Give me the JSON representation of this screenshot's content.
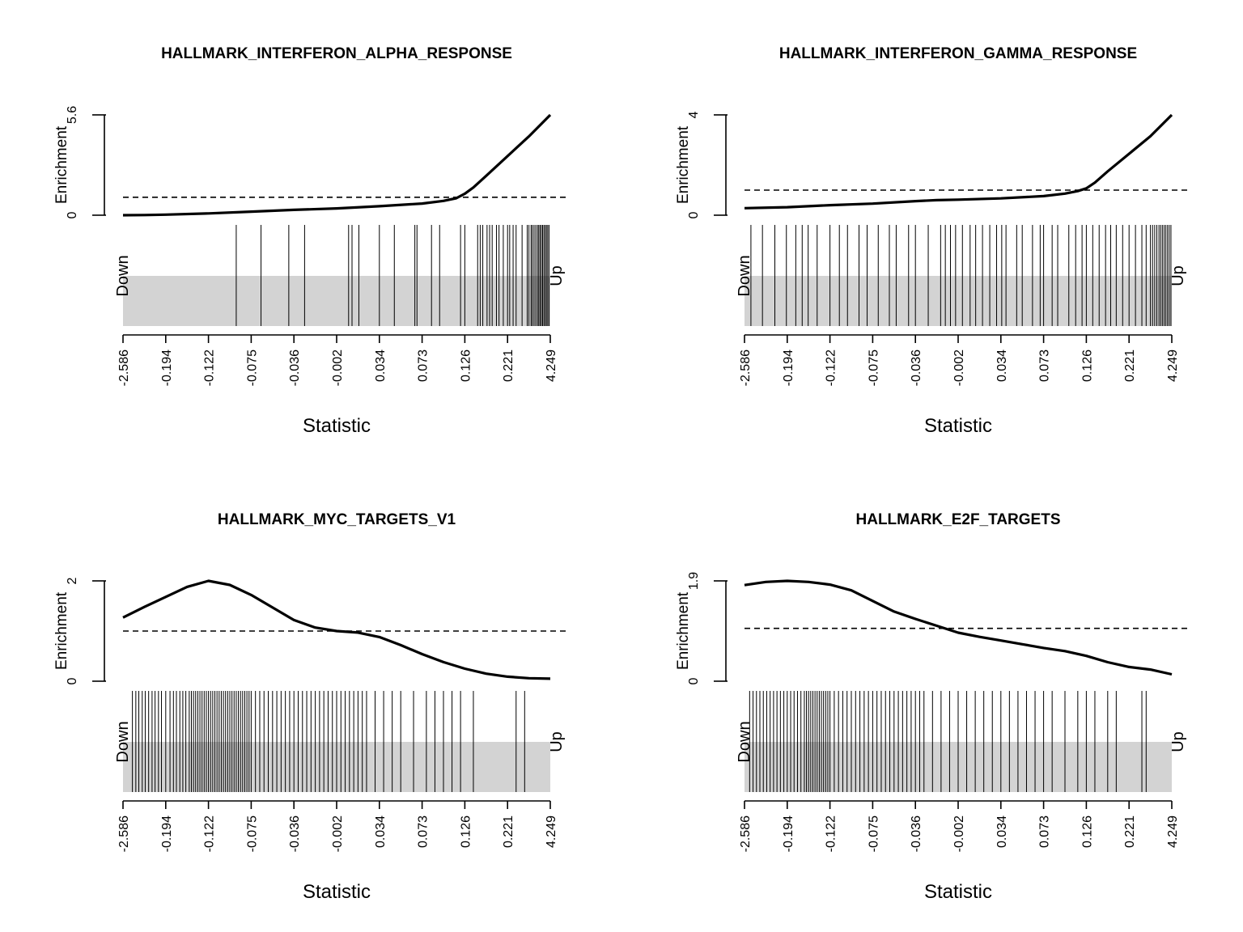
{
  "chart_data": [
    {
      "type": "line",
      "title": "HALLMARK_INTERFERON_ALPHA_RESPONSE",
      "xlabel": "Statistic",
      "ylabel": "Enrichment",
      "ytick_labels": [
        "0",
        "5.6"
      ],
      "ylim": [
        0,
        5.6
      ],
      "xtick_labels": [
        "-2.586",
        "-0.194",
        "-0.122",
        "-0.075",
        "-0.036",
        "-0.002",
        "0.034",
        "0.073",
        "0.126",
        "0.221",
        "4.249"
      ],
      "down_label": "Down",
      "up_label": "Up",
      "reference_line": 1.0,
      "x": [
        0,
        0.05,
        0.1,
        0.2,
        0.3,
        0.4,
        0.5,
        0.6,
        0.7,
        0.75,
        0.78,
        0.8,
        0.82,
        0.85,
        0.9,
        0.95,
        1.0
      ],
      "y": [
        0,
        0.01,
        0.03,
        0.1,
        0.2,
        0.3,
        0.38,
        0.5,
        0.65,
        0.8,
        0.95,
        1.2,
        1.55,
        2.2,
        3.3,
        4.4,
        5.6
      ],
      "barcode_positions": [
        0.265,
        0.323,
        0.388,
        0.425,
        0.528,
        0.536,
        0.552,
        0.6,
        0.635,
        0.683,
        0.688,
        0.722,
        0.741,
        0.79,
        0.8,
        0.83,
        0.836,
        0.842,
        0.852,
        0.858,
        0.864,
        0.874,
        0.88,
        0.89,
        0.9,
        0.905,
        0.913,
        0.92,
        0.934,
        0.946,
        0.95,
        0.955,
        0.958,
        0.962,
        0.966,
        0.97,
        0.973,
        0.976,
        0.979,
        0.982,
        0.985,
        0.988,
        0.991,
        0.994,
        0.997
      ]
    },
    {
      "type": "line",
      "title": "HALLMARK_INTERFERON_GAMMA_RESPONSE",
      "xlabel": "Statistic",
      "ylabel": "Enrichment",
      "ytick_labels": [
        "0",
        "4"
      ],
      "ylim": [
        0,
        4
      ],
      "xtick_labels": [
        "-2.586",
        "-0.194",
        "-0.122",
        "-0.075",
        "-0.036",
        "-0.002",
        "0.034",
        "0.073",
        "0.126",
        "0.221",
        "4.249"
      ],
      "down_label": "Down",
      "up_label": "Up",
      "reference_line": 1.0,
      "x": [
        0,
        0.1,
        0.2,
        0.3,
        0.4,
        0.45,
        0.5,
        0.6,
        0.7,
        0.75,
        0.78,
        0.8,
        0.82,
        0.85,
        0.9,
        0.95,
        1.0
      ],
      "y": [
        0.28,
        0.32,
        0.4,
        0.46,
        0.56,
        0.6,
        0.62,
        0.67,
        0.76,
        0.86,
        0.96,
        1.07,
        1.3,
        1.75,
        2.45,
        3.15,
        4.0
      ],
      "barcode_positions": [
        0.015,
        0.042,
        0.071,
        0.098,
        0.12,
        0.135,
        0.149,
        0.17,
        0.2,
        0.222,
        0.241,
        0.268,
        0.287,
        0.313,
        0.339,
        0.355,
        0.384,
        0.4,
        0.43,
        0.459,
        0.47,
        0.482,
        0.494,
        0.51,
        0.528,
        0.541,
        0.557,
        0.574,
        0.59,
        0.602,
        0.612,
        0.637,
        0.65,
        0.674,
        0.692,
        0.7,
        0.72,
        0.733,
        0.759,
        0.775,
        0.79,
        0.8,
        0.815,
        0.83,
        0.845,
        0.857,
        0.87,
        0.885,
        0.9,
        0.915,
        0.93,
        0.94,
        0.95,
        0.955,
        0.96,
        0.965,
        0.97,
        0.974,
        0.978,
        0.982,
        0.986,
        0.99,
        0.994,
        0.998
      ]
    },
    {
      "type": "line",
      "title": "HALLMARK_MYC_TARGETS_V1",
      "xlabel": "Statistic",
      "ylabel": "Enrichment",
      "ytick_labels": [
        "0",
        "2"
      ],
      "ylim": [
        0,
        2
      ],
      "xtick_labels": [
        "-2.586",
        "-0.194",
        "-0.122",
        "-0.075",
        "-0.036",
        "-0.002",
        "0.034",
        "0.073",
        "0.126",
        "0.221",
        "4.249"
      ],
      "down_label": "Down",
      "up_label": "Up",
      "reference_line": 1.0,
      "x": [
        0,
        0.05,
        0.1,
        0.15,
        0.2,
        0.25,
        0.3,
        0.35,
        0.4,
        0.45,
        0.5,
        0.55,
        0.6,
        0.65,
        0.7,
        0.75,
        0.8,
        0.85,
        0.9,
        0.95,
        1.0
      ],
      "y": [
        1.27,
        1.48,
        1.68,
        1.88,
        2.0,
        1.92,
        1.72,
        1.47,
        1.22,
        1.07,
        1.0,
        0.97,
        0.88,
        0.72,
        0.54,
        0.38,
        0.25,
        0.15,
        0.09,
        0.06,
        0.05
      ],
      "barcode_positions": [
        0.022,
        0.03,
        0.037,
        0.045,
        0.052,
        0.06,
        0.068,
        0.075,
        0.083,
        0.09,
        0.1,
        0.11,
        0.118,
        0.125,
        0.133,
        0.14,
        0.147,
        0.155,
        0.16,
        0.165,
        0.17,
        0.175,
        0.18,
        0.185,
        0.19,
        0.195,
        0.2,
        0.205,
        0.21,
        0.215,
        0.22,
        0.225,
        0.23,
        0.235,
        0.24,
        0.245,
        0.25,
        0.255,
        0.26,
        0.265,
        0.27,
        0.275,
        0.28,
        0.285,
        0.29,
        0.295,
        0.3,
        0.31,
        0.32,
        0.33,
        0.34,
        0.35,
        0.36,
        0.37,
        0.38,
        0.39,
        0.4,
        0.41,
        0.42,
        0.43,
        0.44,
        0.45,
        0.46,
        0.47,
        0.48,
        0.49,
        0.5,
        0.51,
        0.52,
        0.53,
        0.54,
        0.55,
        0.56,
        0.57,
        0.59,
        0.61,
        0.63,
        0.65,
        0.68,
        0.71,
        0.73,
        0.75,
        0.77,
        0.79,
        0.82,
        0.92,
        0.94
      ]
    },
    {
      "type": "line",
      "title": "HALLMARK_E2F_TARGETS",
      "xlabel": "Statistic",
      "ylabel": "Enrichment",
      "ytick_labels": [
        "0",
        "1.9"
      ],
      "ylim": [
        0,
        1.9
      ],
      "xtick_labels": [
        "-2.586",
        "-0.194",
        "-0.122",
        "-0.075",
        "-0.036",
        "-0.002",
        "0.034",
        "0.073",
        "0.126",
        "0.221",
        "4.249"
      ],
      "down_label": "Down",
      "up_label": "Up",
      "reference_line": 1.0,
      "x": [
        0,
        0.05,
        0.1,
        0.15,
        0.2,
        0.25,
        0.3,
        0.35,
        0.4,
        0.45,
        0.5,
        0.55,
        0.6,
        0.65,
        0.7,
        0.75,
        0.8,
        0.85,
        0.9,
        0.95,
        1.0
      ],
      "y": [
        1.82,
        1.88,
        1.9,
        1.88,
        1.83,
        1.72,
        1.52,
        1.32,
        1.18,
        1.05,
        0.92,
        0.84,
        0.77,
        0.7,
        0.63,
        0.57,
        0.48,
        0.36,
        0.27,
        0.22,
        0.13
      ],
      "barcode_positions": [
        0.012,
        0.02,
        0.028,
        0.036,
        0.044,
        0.052,
        0.06,
        0.068,
        0.076,
        0.084,
        0.092,
        0.1,
        0.108,
        0.116,
        0.124,
        0.132,
        0.14,
        0.145,
        0.15,
        0.155,
        0.16,
        0.165,
        0.17,
        0.175,
        0.18,
        0.185,
        0.19,
        0.195,
        0.2,
        0.21,
        0.22,
        0.23,
        0.24,
        0.25,
        0.26,
        0.27,
        0.28,
        0.29,
        0.3,
        0.31,
        0.32,
        0.33,
        0.34,
        0.35,
        0.36,
        0.37,
        0.38,
        0.39,
        0.4,
        0.41,
        0.42,
        0.44,
        0.46,
        0.48,
        0.5,
        0.52,
        0.54,
        0.56,
        0.58,
        0.6,
        0.62,
        0.64,
        0.66,
        0.68,
        0.7,
        0.72,
        0.75,
        0.78,
        0.8,
        0.82,
        0.85,
        0.87,
        0.93,
        0.94
      ]
    }
  ]
}
